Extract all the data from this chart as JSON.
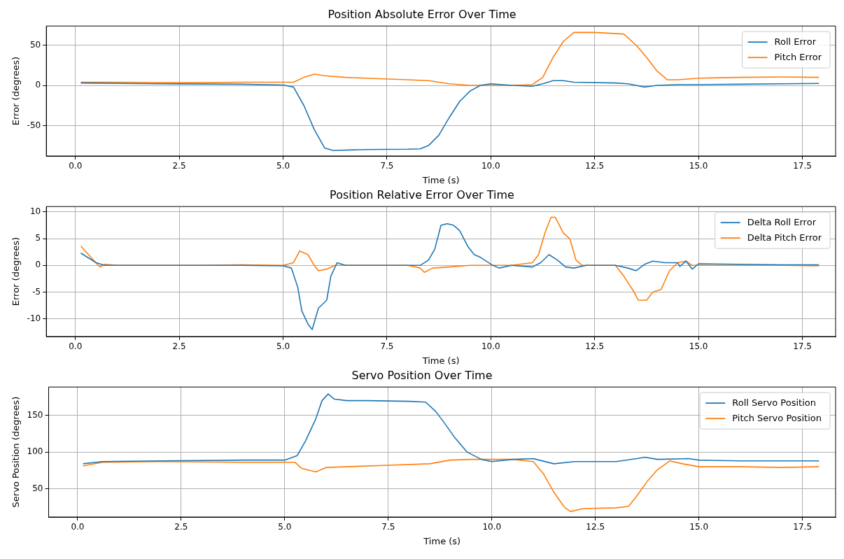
{
  "chart_data": [
    {
      "type": "line",
      "title": "Position Absolute Error Over Time",
      "xlabel": "Time (s)",
      "ylabel": "Error (degrees)",
      "xlim": [
        -0.7,
        18.3
      ],
      "xticks": [
        {
          "value": 0,
          "label": "0.0"
        },
        {
          "value": 2.5,
          "label": "2.5"
        },
        {
          "value": 5,
          "label": "5.0"
        },
        {
          "value": 7.5,
          "label": "7.5"
        },
        {
          "value": 10,
          "label": "10.0"
        },
        {
          "value": 12.5,
          "label": "12.5"
        },
        {
          "value": 15,
          "label": "15.0"
        },
        {
          "value": 17.5,
          "label": "17.5"
        }
      ],
      "ylim": [
        -88,
        74
      ],
      "yticks": [
        -50,
        0,
        50
      ],
      "grid": true,
      "legend": "top right",
      "marker": "none",
      "line_style": "solid",
      "series": [
        {
          "name": "Roll Error",
          "color": "#1f77b4",
          "x": [
            0.13,
            2,
            4,
            5,
            5.25,
            5.5,
            5.75,
            6,
            6.2,
            7,
            8,
            8.3,
            8.5,
            8.75,
            9,
            9.25,
            9.5,
            9.75,
            10,
            10.5,
            11,
            11.25,
            11.5,
            11.75,
            12,
            13,
            13.3,
            13.7,
            14,
            14.5,
            15,
            16,
            17,
            17.9
          ],
          "values": [
            3,
            2,
            1.5,
            0.5,
            -2,
            -25,
            -55,
            -78,
            -81,
            -80,
            -79.5,
            -79,
            -75,
            -62,
            -40,
            -20,
            -7,
            0,
            2,
            0,
            -1,
            2,
            6,
            6,
            4,
            3,
            2,
            -2,
            0,
            1,
            1,
            1.5,
            2,
            2.5
          ]
        },
        {
          "name": "Pitch Error",
          "color": "#ff7f0e",
          "x": [
            0.13,
            1,
            2,
            3,
            4,
            5.25,
            5.5,
            5.75,
            6,
            6.5,
            7,
            8,
            8.5,
            9,
            9.5,
            10,
            10.5,
            11,
            11.25,
            11.5,
            11.75,
            12,
            12.5,
            13.2,
            13.5,
            13.75,
            14,
            14.25,
            14.5,
            15,
            16,
            17,
            17.9
          ],
          "values": [
            4,
            4,
            3.5,
            3.5,
            4,
            4,
            10,
            14,
            12,
            10,
            9,
            7,
            6,
            2,
            0,
            0,
            0,
            1,
            10,
            35,
            55,
            66,
            66,
            64,
            50,
            35,
            18,
            7,
            7,
            9,
            10,
            10.5,
            10
          ]
        }
      ]
    },
    {
      "type": "line",
      "title": "Position Relative Error Over Time",
      "xlabel": "Time (s)",
      "ylabel": "Error (degrees)",
      "xlim": [
        -0.7,
        18.3
      ],
      "xticks": [
        {
          "value": 0,
          "label": "0.0"
        },
        {
          "value": 2.5,
          "label": "2.5"
        },
        {
          "value": 5,
          "label": "5.0"
        },
        {
          "value": 7.5,
          "label": "7.5"
        },
        {
          "value": 10,
          "label": "10.0"
        },
        {
          "value": 12.5,
          "label": "12.5"
        },
        {
          "value": 15,
          "label": "15.0"
        },
        {
          "value": 17.5,
          "label": "17.5"
        }
      ],
      "ylim": [
        -13.3,
        11
      ],
      "yticks": [
        -10,
        -5,
        0,
        5,
        10
      ],
      "grid": true,
      "legend": "top right",
      "marker": "none",
      "line_style": "solid",
      "series": [
        {
          "name": "Delta Roll Error",
          "color": "#1f77b4",
          "x": [
            0.13,
            0.5,
            0.7,
            2,
            4,
            5,
            5.2,
            5.35,
            5.45,
            5.6,
            5.7,
            5.85,
            6.05,
            6.15,
            6.3,
            6.5,
            8.3,
            8.5,
            8.65,
            8.8,
            8.95,
            9.1,
            9.25,
            9.45,
            9.6,
            9.75,
            10.05,
            10.2,
            10.5,
            11,
            11.2,
            11.4,
            11.6,
            11.8,
            12,
            12.3,
            13,
            13.3,
            13.5,
            13.7,
            13.9,
            14.2,
            14.5,
            14.55,
            14.7,
            14.85,
            15,
            16,
            17,
            17.9
          ],
          "values": [
            2.3,
            0.5,
            0,
            0,
            0,
            -0.1,
            -0.5,
            -4,
            -8.5,
            -11,
            -12,
            -8,
            -6.5,
            -2,
            0.5,
            0,
            0,
            1,
            3,
            7.5,
            7.8,
            7.5,
            6.5,
            3.5,
            2,
            1.5,
            0,
            -0.5,
            0,
            -0.3,
            0.5,
            2,
            1,
            -0.3,
            -0.5,
            0,
            0,
            -0.5,
            -1,
            0.2,
            0.8,
            0.5,
            0.5,
            -0.2,
            0.8,
            -0.7,
            0.3,
            0.2,
            0.1,
            0.1
          ]
        },
        {
          "name": "Delta Pitch Error",
          "color": "#ff7f0e",
          "x": [
            0.13,
            0.55,
            0.6,
            0.7,
            1,
            3,
            4,
            5,
            5.25,
            5.4,
            5.6,
            5.75,
            5.85,
            6.05,
            6.25,
            8,
            8.3,
            8.4,
            8.6,
            9,
            9.5,
            10.5,
            11,
            11.15,
            11.3,
            11.45,
            11.55,
            11.75,
            11.9,
            12.05,
            12.2,
            13,
            13.2,
            13.45,
            13.55,
            13.75,
            13.9,
            14.1,
            14.3,
            14.5,
            14.7,
            14.85,
            15,
            16,
            17,
            17.9
          ],
          "values": [
            3.6,
            0,
            -0.3,
            0.2,
            0,
            0,
            0.1,
            0,
            0.5,
            2.7,
            2,
            0,
            -1,
            -0.7,
            0,
            0,
            -0.5,
            -1.3,
            -0.5,
            -0.3,
            0,
            0,
            0.5,
            2,
            6,
            9,
            9,
            6,
            5,
            1,
            0,
            0,
            -2,
            -5,
            -6.5,
            -6.5,
            -5,
            -4.5,
            -1,
            0.5,
            0.8,
            0,
            0,
            0,
            0,
            -0.1
          ]
        }
      ]
    },
    {
      "type": "line",
      "title": "Servo Position Over Time",
      "xlabel": "Time (s)",
      "ylabel": "Servo Position (degrees)",
      "xlim": [
        -0.7,
        18.3
      ],
      "xticks": [
        {
          "value": 0,
          "label": "0.0"
        },
        {
          "value": 2.5,
          "label": "2.5"
        },
        {
          "value": 5,
          "label": "5.0"
        },
        {
          "value": 7.5,
          "label": "7.5"
        },
        {
          "value": 10,
          "label": "10.0"
        },
        {
          "value": 12.5,
          "label": "12.5"
        },
        {
          "value": 15,
          "label": "15.0"
        },
        {
          "value": 17.5,
          "label": "17.5"
        }
      ],
      "ylim": [
        11.5,
        188.5
      ],
      "yticks": [
        50,
        100,
        150
      ],
      "grid": true,
      "legend": "top right",
      "marker": "none",
      "line_style": "solid",
      "series": [
        {
          "name": "Roll Servo Position",
          "color": "#1f77b4",
          "x": [
            0.13,
            0.6,
            2,
            4,
            5,
            5.3,
            5.5,
            5.75,
            5.9,
            6.05,
            6.2,
            6.5,
            7,
            8,
            8.4,
            8.65,
            8.85,
            9.1,
            9.4,
            9.75,
            10,
            10.5,
            11,
            11.5,
            12,
            13,
            13.5,
            13.7,
            14,
            14.75,
            15,
            16,
            17,
            17.9
          ],
          "values": [
            84,
            87,
            88,
            89,
            89,
            95,
            115,
            145,
            170,
            179,
            172,
            170,
            170,
            169,
            168,
            155,
            140,
            120,
            100,
            90,
            87,
            90,
            91,
            84,
            87,
            87,
            91,
            93,
            90,
            91,
            89,
            88,
            88,
            88
          ]
        },
        {
          "name": "Pitch Servo Position",
          "color": "#ff7f0e",
          "x": [
            0.13,
            0.6,
            2,
            4,
            5.25,
            5.4,
            5.75,
            6,
            6.5,
            7.5,
            8.5,
            9,
            9.5,
            10,
            10.5,
            11,
            11.25,
            11.5,
            11.75,
            11.9,
            12.2,
            13,
            13.3,
            13.5,
            13.75,
            14,
            14.3,
            14.6,
            15,
            16,
            17,
            17.9
          ],
          "values": [
            81,
            86,
            87,
            86,
            86,
            78,
            73,
            79,
            80,
            82,
            84,
            89,
            90,
            90,
            90,
            87,
            70,
            45,
            25,
            19,
            23,
            24,
            26,
            40,
            60,
            76,
            88,
            84,
            80,
            80,
            79,
            80
          ]
        }
      ]
    }
  ]
}
